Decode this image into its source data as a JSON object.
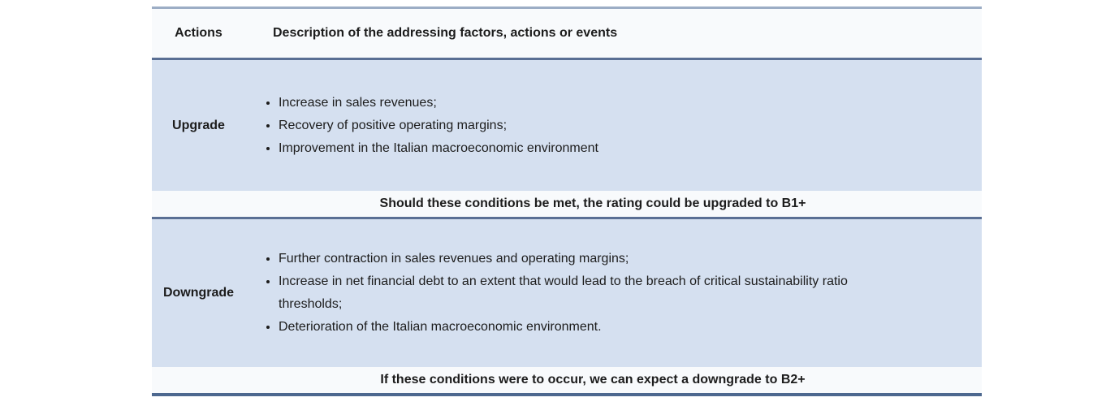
{
  "theme": {
    "row_bg": "#d5e0f0",
    "band_bg": "#f8fafc",
    "border_dark": "#5a6f94",
    "border_top": "#9cadc5",
    "border_bottom": "#4d688f",
    "text_color": "#1c1c1c"
  },
  "table": {
    "header": {
      "actions": "Actions",
      "description": "Description of the addressing factors, actions or events"
    },
    "upgrade": {
      "action": "Upgrade",
      "bullets": [
        "Increase in sales revenues;",
        "Recovery of positive operating margins;",
        "Improvement in the Italian macroeconomic environment"
      ],
      "condition": "Should these conditions be met, the rating could be upgraded to B1+"
    },
    "downgrade": {
      "action": "Downgrade",
      "bullets": [
        "Further contraction in sales revenues and operating margins;",
        "Increase in net financial debt to an extent that would lead to the breach of critical sustainability ratio thresholds;",
        "Deterioration of the Italian macroeconomic environment."
      ],
      "condition": "If these conditions were to occur, we can expect a downgrade to B2+"
    }
  }
}
